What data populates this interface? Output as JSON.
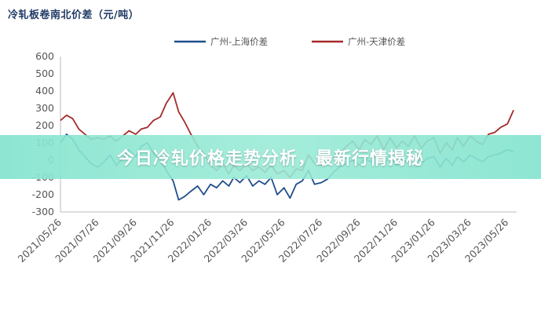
{
  "banner": {
    "text": "今日冷轧价格走势分析，最新行情揭秘"
  },
  "chart_data": {
    "type": "line",
    "title": "冷轧板卷南北价差（元/吨）",
    "ylim": [
      -300,
      600
    ],
    "yticks": [
      600,
      500,
      400,
      300,
      200,
      100,
      0,
      -100,
      -200,
      -300
    ],
    "x_tick_labels": [
      "2021/05/26",
      "2021/07/26",
      "2021/09/26",
      "2021/11/26",
      "2022/01/26",
      "2022/03/26",
      "2022/05/26",
      "2022/07/26",
      "2022/09/26",
      "2022/11/26",
      "2023/01/26",
      "2023/03/26",
      "2023/05/26"
    ],
    "x_range": [
      "2021/05/26",
      "2023/06/10"
    ],
    "legend_position": "top-center",
    "grid": false,
    "colors": {
      "series_1": "#1f4e8c",
      "series_2": "#a52a2a",
      "axis": "#bbbbbb"
    },
    "series": [
      {
        "name": "广州-上海价差",
        "x": [
          "2021/05/26",
          "2021/06/05",
          "2021/06/15",
          "2021/06/25",
          "2021/07/05",
          "2021/07/15",
          "2021/07/26",
          "2021/08/05",
          "2021/08/15",
          "2021/08/25",
          "2021/09/05",
          "2021/09/15",
          "2021/09/26",
          "2021/10/05",
          "2021/10/15",
          "2021/10/25",
          "2021/11/05",
          "2021/11/15",
          "2021/11/26",
          "2021/12/05",
          "2021/12/15",
          "2021/12/25",
          "2022/01/05",
          "2022/01/15",
          "2022/01/26",
          "2022/02/05",
          "2022/02/15",
          "2022/02/25",
          "2022/03/05",
          "2022/03/15",
          "2022/03/26",
          "2022/04/05",
          "2022/04/15",
          "2022/04/25",
          "2022/05/05",
          "2022/05/15",
          "2022/05/26",
          "2022/06/05",
          "2022/06/15",
          "2022/06/25",
          "2022/07/05",
          "2022/07/15",
          "2022/07/26",
          "2022/08/05",
          "2022/08/15",
          "2022/08/25",
          "2022/09/05",
          "2022/09/15",
          "2022/09/26",
          "2022/10/05",
          "2022/10/15",
          "2022/10/25",
          "2022/11/05",
          "2022/11/15",
          "2022/11/26",
          "2022/12/05",
          "2022/12/15",
          "2022/12/25",
          "2023/01/05",
          "2023/01/15",
          "2023/01/26",
          "2023/02/05",
          "2023/02/15",
          "2023/02/25",
          "2023/03/05",
          "2023/03/15",
          "2023/03/26",
          "2023/04/05",
          "2023/04/15",
          "2023/04/25",
          "2023/05/05",
          "2023/05/15",
          "2023/05/26",
          "2023/06/05"
        ],
        "values": [
          100,
          150,
          120,
          60,
          20,
          -20,
          -40,
          -10,
          30,
          -30,
          10,
          60,
          20,
          80,
          100,
          40,
          0,
          -60,
          -120,
          -230,
          -210,
          -180,
          -150,
          -200,
          -140,
          -160,
          -120,
          -150,
          -100,
          -130,
          -90,
          -150,
          -120,
          -140,
          -100,
          -200,
          -160,
          -220,
          -140,
          -120,
          -60,
          -140,
          -130,
          -110,
          -70,
          -40,
          -20,
          0,
          -30,
          10,
          -10,
          40,
          -20,
          20,
          -30,
          0,
          -10,
          30,
          -20,
          10,
          20,
          -40,
          10,
          -30,
          20,
          -10,
          30,
          10,
          -10,
          20,
          30,
          40,
          60,
          50
        ]
      },
      {
        "name": "广州-天津价差",
        "x": [
          "2021/05/26",
          "2021/06/05",
          "2021/06/15",
          "2021/06/25",
          "2021/07/05",
          "2021/07/15",
          "2021/07/26",
          "2021/08/05",
          "2021/08/15",
          "2021/08/25",
          "2021/09/05",
          "2021/09/15",
          "2021/09/26",
          "2021/10/05",
          "2021/10/15",
          "2021/10/25",
          "2021/11/05",
          "2021/11/15",
          "2021/11/26",
          "2021/12/05",
          "2021/12/15",
          "2021/12/25",
          "2022/01/05",
          "2022/01/15",
          "2022/01/26",
          "2022/02/05",
          "2022/02/15",
          "2022/02/25",
          "2022/03/05",
          "2022/03/15",
          "2022/03/26",
          "2022/04/05",
          "2022/04/15",
          "2022/04/25",
          "2022/05/05",
          "2022/05/15",
          "2022/05/26",
          "2022/06/05",
          "2022/06/15",
          "2022/06/25",
          "2022/07/05",
          "2022/07/15",
          "2022/07/26",
          "2022/08/05",
          "2022/08/15",
          "2022/08/25",
          "2022/09/05",
          "2022/09/15",
          "2022/09/26",
          "2022/10/05",
          "2022/10/15",
          "2022/10/25",
          "2022/11/05",
          "2022/11/15",
          "2022/11/26",
          "2022/12/05",
          "2022/12/15",
          "2022/12/25",
          "2023/01/05",
          "2023/01/15",
          "2023/01/26",
          "2023/02/05",
          "2023/02/15",
          "2023/02/25",
          "2023/03/05",
          "2023/03/15",
          "2023/03/26",
          "2023/04/05",
          "2023/04/15",
          "2023/04/25",
          "2023/05/05",
          "2023/05/15",
          "2023/05/26",
          "2023/06/05"
        ],
        "values": [
          230,
          260,
          240,
          180,
          150,
          120,
          130,
          120,
          140,
          110,
          140,
          170,
          150,
          180,
          190,
          230,
          250,
          330,
          390,
          280,
          220,
          150,
          80,
          40,
          -30,
          -60,
          -20,
          -80,
          -30,
          -60,
          -20,
          -60,
          -40,
          -70,
          -30,
          -80,
          -60,
          -100,
          -50,
          -60,
          30,
          -20,
          -30,
          -10,
          20,
          40,
          80,
          110,
          60,
          120,
          90,
          140,
          60,
          130,
          70,
          110,
          80,
          140,
          70,
          110,
          130,
          40,
          100,
          60,
          130,
          80,
          140,
          110,
          90,
          150,
          160,
          190,
          210,
          290
        ]
      }
    ]
  }
}
